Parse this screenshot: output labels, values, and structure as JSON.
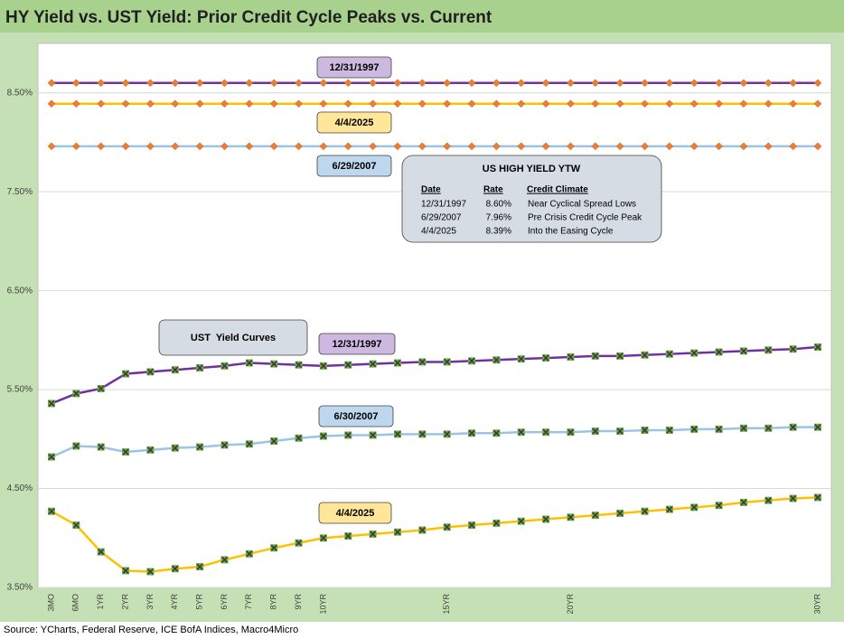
{
  "chart_data": {
    "type": "line",
    "title": "HY Yield vs. UST Yield: Prior Credit Cycle Peaks vs. Current",
    "source": "Source: YCharts, Federal Reserve, ICE BofA Indices, Macro4Micro",
    "categories": [
      "3MO",
      "6MO",
      "1YR",
      "2YR",
      "3YR",
      "4YR",
      "5YR",
      "6YR",
      "7YR",
      "8YR",
      "9YR",
      "10YR",
      null,
      null,
      null,
      null,
      "15YR",
      null,
      null,
      null,
      null,
      "20YR",
      null,
      null,
      null,
      null,
      null,
      null,
      null,
      null,
      null,
      "30YR"
    ],
    "ylim": [
      3.5,
      9.0
    ],
    "yticks": [
      {
        "value": 3.5,
        "label": "3.50%"
      },
      {
        "value": 4.5,
        "label": "4.50%"
      },
      {
        "value": 5.5,
        "label": "5.50%"
      },
      {
        "value": 6.5,
        "label": "6.50%"
      },
      {
        "value": 7.5,
        "label": "7.50%"
      },
      {
        "value": 8.5,
        "label": "8.50%"
      }
    ],
    "grid": true,
    "series": [
      {
        "name": "12/31/1997",
        "color": "#7030a0",
        "marker": "diamond",
        "marker_color": "#ed7d31",
        "values": [
          8.6,
          8.6,
          8.6,
          8.6,
          8.6,
          8.6,
          8.6,
          8.6,
          8.6,
          8.6,
          8.6,
          8.6,
          8.6,
          8.6,
          8.6,
          8.6,
          8.6,
          8.6,
          8.6,
          8.6,
          8.6,
          8.6,
          8.6,
          8.6,
          8.6,
          8.6,
          8.6,
          8.6,
          8.6,
          8.6,
          8.6,
          8.6
        ]
      },
      {
        "name": "4/4/2025",
        "color": "#ffc000",
        "marker": "diamond",
        "marker_color": "#ed7d31",
        "values": [
          8.39,
          8.39,
          8.39,
          8.39,
          8.39,
          8.39,
          8.39,
          8.39,
          8.39,
          8.39,
          8.39,
          8.39,
          8.39,
          8.39,
          8.39,
          8.39,
          8.39,
          8.39,
          8.39,
          8.39,
          8.39,
          8.39,
          8.39,
          8.39,
          8.39,
          8.39,
          8.39,
          8.39,
          8.39,
          8.39,
          8.39,
          8.39
        ]
      },
      {
        "name": "6/29/2007",
        "color": "#9dc3e6",
        "marker": "diamond",
        "marker_color": "#ed7d31",
        "values": [
          7.96,
          7.96,
          7.96,
          7.96,
          7.96,
          7.96,
          7.96,
          7.96,
          7.96,
          7.96,
          7.96,
          7.96,
          7.96,
          7.96,
          7.96,
          7.96,
          7.96,
          7.96,
          7.96,
          7.96,
          7.96,
          7.96,
          7.96,
          7.96,
          7.96,
          7.96,
          7.96,
          7.96,
          7.96,
          7.96,
          7.96,
          7.96
        ]
      },
      {
        "name": "12/31/1997",
        "color": "#7030a0",
        "marker": "x-square",
        "marker_color": "#70ad47",
        "values": [
          5.36,
          5.46,
          5.51,
          5.66,
          5.68,
          5.7,
          5.72,
          5.74,
          5.77,
          5.76,
          5.75,
          5.74,
          5.75,
          5.76,
          5.77,
          5.78,
          5.78,
          5.79,
          5.8,
          5.81,
          5.82,
          5.83,
          5.84,
          5.84,
          5.85,
          5.86,
          5.87,
          5.88,
          5.89,
          5.9,
          5.91,
          5.93
        ]
      },
      {
        "name": "6/30/2007",
        "color": "#9dc3e6",
        "marker": "x-square",
        "marker_color": "#70ad47",
        "values": [
          4.82,
          4.93,
          4.92,
          4.87,
          4.89,
          4.91,
          4.92,
          4.94,
          4.95,
          4.98,
          5.01,
          5.03,
          5.04,
          5.04,
          5.05,
          5.05,
          5.05,
          5.06,
          5.06,
          5.07,
          5.07,
          5.07,
          5.08,
          5.08,
          5.09,
          5.09,
          5.1,
          5.1,
          5.11,
          5.11,
          5.12,
          5.12
        ]
      },
      {
        "name": "4/4/2025",
        "color": "#ffc000",
        "marker": "x-square",
        "marker_color": "#70ad47",
        "values": [
          4.27,
          4.13,
          3.86,
          3.67,
          3.66,
          3.69,
          3.71,
          3.78,
          3.84,
          3.9,
          3.95,
          4.0,
          4.02,
          4.04,
          4.06,
          4.08,
          4.11,
          4.13,
          4.15,
          4.17,
          4.19,
          4.21,
          4.23,
          4.25,
          4.27,
          4.29,
          4.31,
          4.33,
          4.36,
          4.38,
          4.4,
          4.41
        ]
      }
    ],
    "annotations": [
      "UST  Yield Curves"
    ],
    "ytw_table": {
      "title": "US HIGH YIELD YTW",
      "columns": [
        "Date",
        "Rate",
        "Credit Climate"
      ],
      "rows": [
        [
          "12/31/1997",
          "8.60%",
          "Near Cyclical Spread Lows"
        ],
        [
          "6/29/2007",
          "7.96%",
          "Pre Crisis Credit Cycle Peak"
        ],
        [
          "4/4/2025",
          "8.39%",
          "Into the Easing Cycle"
        ]
      ]
    }
  }
}
